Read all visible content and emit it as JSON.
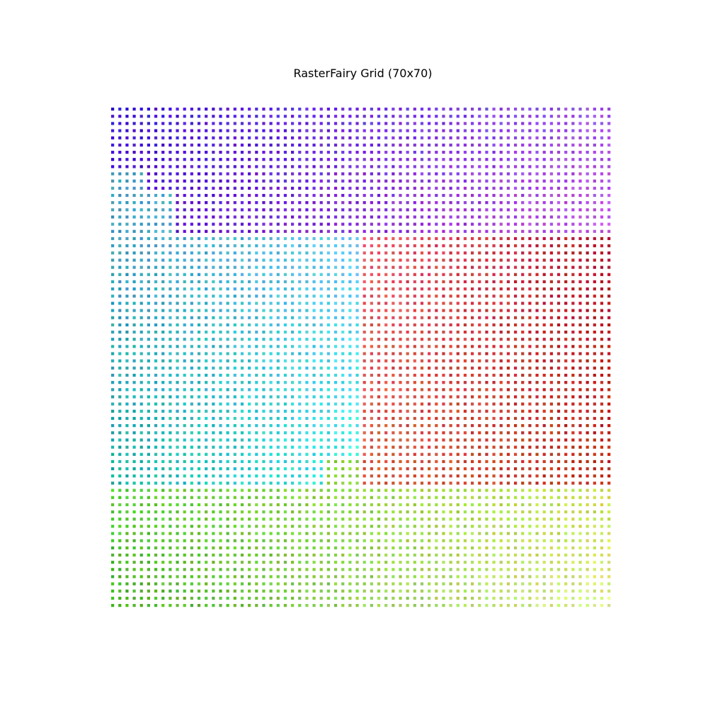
{
  "chart_data": {
    "type": "scatter",
    "title": "RasterFairy Grid (70x70)",
    "grid": false,
    "axes_visible": false,
    "rows": 70,
    "cols": 70,
    "marker": "square",
    "color_regions": [
      {
        "name": "purple",
        "col_range": [
          0,
          69
        ],
        "row_range": [
          0,
          17
        ],
        "corner_colors": {
          "top-left": "#3a10d6",
          "top-right": "#9c52e6",
          "bottom-left": "#4a08cc",
          "bottom-right": "#c24ee0"
        }
      },
      {
        "name": "red",
        "col_range": [
          35,
          69
        ],
        "row_range": [
          18,
          52
        ],
        "corner_colors": {
          "top-left": "#e85566",
          "top-right": "#b0102a",
          "bottom-left": "#d85a3c",
          "bottom-right": "#c02c14"
        }
      },
      {
        "name": "cyan",
        "col_range": [
          0,
          34
        ],
        "row_range": [
          18,
          52
        ],
        "corner_colors": {
          "top-left": "#3a9cc0",
          "top-right": "#60c8f0",
          "bottom-left": "#10b0a0",
          "bottom-right": "#30f0e8"
        }
      },
      {
        "name": "green",
        "col_range": [
          0,
          69
        ],
        "row_range": [
          53,
          69
        ],
        "corner_colors": {
          "top-left": "#50d030",
          "top-right": "#c8e040",
          "bottom-left": "#40b020",
          "bottom-right": "#e0f080"
        }
      }
    ],
    "region_exceptions": [
      {
        "region": "cyan",
        "col_range": [
          0,
          4
        ],
        "row_range": [
          9,
          17
        ]
      },
      {
        "region": "cyan",
        "col_range": [
          5,
          8
        ],
        "row_range": [
          12,
          17
        ]
      },
      {
        "region": "green",
        "col_range": [
          30,
          34
        ],
        "row_range": [
          49,
          52
        ]
      }
    ]
  }
}
